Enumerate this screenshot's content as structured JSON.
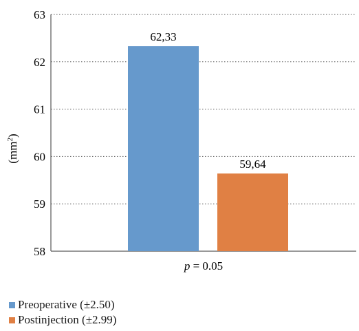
{
  "chart_data": {
    "type": "bar",
    "categories": [
      "p = 0.05"
    ],
    "category_label": {
      "italic_part": "p",
      "rest": " = 0.05"
    },
    "ylabel": {
      "text": "(mm",
      "sup": "2",
      "close": ")"
    },
    "ylim": [
      58,
      63
    ],
    "yticks": [
      58,
      59,
      60,
      61,
      62,
      63
    ],
    "grid": "dotted horizontal",
    "legend_position": "bottom-left",
    "series": [
      {
        "name": "Preoperative (±2.50)",
        "values": [
          62.33
        ],
        "label": "62,33",
        "color": "#6699cc"
      },
      {
        "name": "Postinjection (±2.99)",
        "values": [
          59.64
        ],
        "label": "59,64",
        "color": "#e08044"
      }
    ]
  }
}
